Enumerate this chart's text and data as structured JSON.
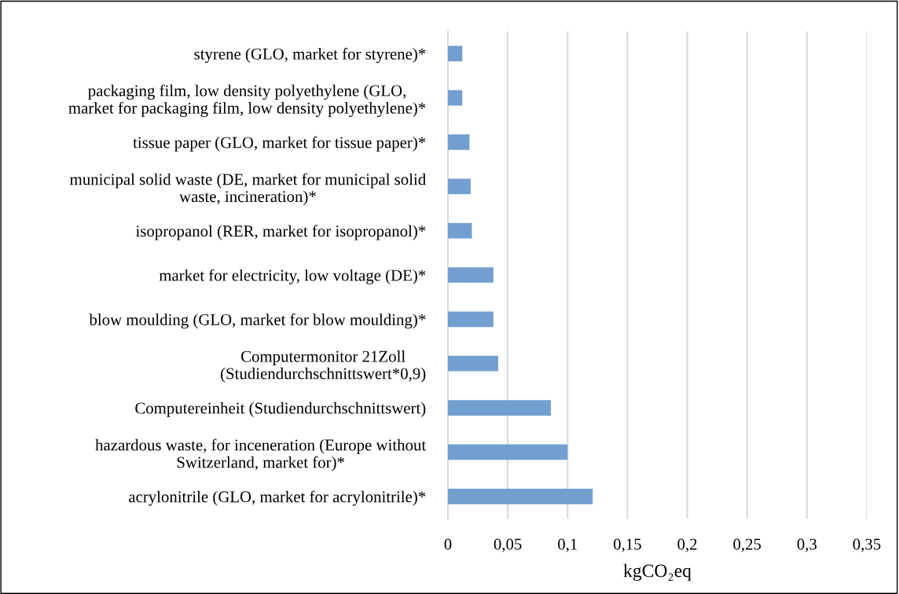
{
  "chart_data": {
    "type": "bar",
    "orientation": "horizontal",
    "categories": [
      "styrene (GLO, market for styrene)*",
      "packaging film, low density polyethylene (GLO,\nmarket for packaging film, low density polyethylene)*",
      "tissue paper (GLO, market for tissue paper)*",
      "municipal solid waste (DE, market for municipal solid\nwaste, incineration)*",
      "isopropanol (RER, market for isopropanol)*",
      "market for electricity, low voltage (DE)*",
      "blow moulding (GLO, market for blow moulding)*",
      "Computermonitor 21Zoll\n(Studiendurchschnittswert*0,9)",
      "Computereinheit (Studiendurchschnittswert)",
      "hazardous waste, for inceneration (Europe without\nSwitzerland, market for)*",
      "acrylonitrile (GLO, market for acrylonitrile)*"
    ],
    "values": [
      0.012,
      0.012,
      0.018,
      0.019,
      0.02,
      0.038,
      0.038,
      0.042,
      0.086,
      0.1,
      0.121
    ],
    "color": "#739fd0",
    "xlabel": "kgCO₂eq",
    "xlim": [
      0,
      0.35
    ],
    "xticks": [
      0,
      {
        "value": 0.05,
        "label": "0,05"
      },
      {
        "value": 0.1,
        "label": "0,1"
      },
      {
        "value": 0.15,
        "label": "0,15"
      },
      {
        "value": 0.2,
        "label": "0,2"
      },
      {
        "value": 0.25,
        "label": "0,25"
      },
      {
        "value": 0.3,
        "label": "0,3"
      },
      {
        "value": 0.35,
        "label": "0,35"
      }
    ],
    "grid": "x",
    "legend": false
  }
}
